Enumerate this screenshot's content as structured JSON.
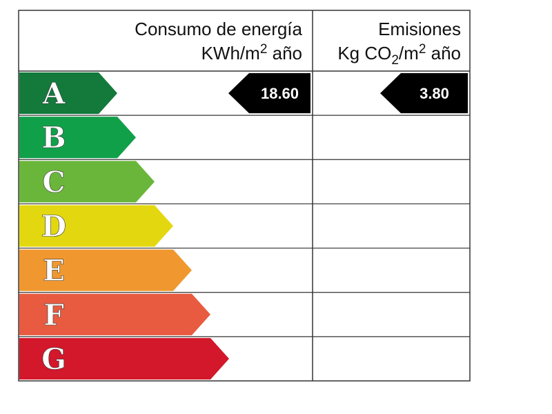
{
  "header": {
    "consumption": {
      "title": "Consumo de energía",
      "unit_parts": [
        "KWh/m",
        "2",
        " año"
      ]
    },
    "emissions": {
      "title": "Emisiones",
      "unit_parts": [
        "Kg CO",
        "2",
        "/m",
        "2",
        " año"
      ]
    }
  },
  "ratings": [
    {
      "letter": "A",
      "color": "#137a3c"
    },
    {
      "letter": "B",
      "color": "#11a04a"
    },
    {
      "letter": "C",
      "color": "#6ab63b"
    },
    {
      "letter": "D",
      "color": "#e3d80f"
    },
    {
      "letter": "E",
      "color": "#f0982f"
    },
    {
      "letter": "F",
      "color": "#e85b40"
    },
    {
      "letter": "G",
      "color": "#d2182a"
    }
  ],
  "consumption": {
    "rating": "A",
    "value": "18.60"
  },
  "emissions": {
    "rating": "A",
    "value": "3.80"
  }
}
